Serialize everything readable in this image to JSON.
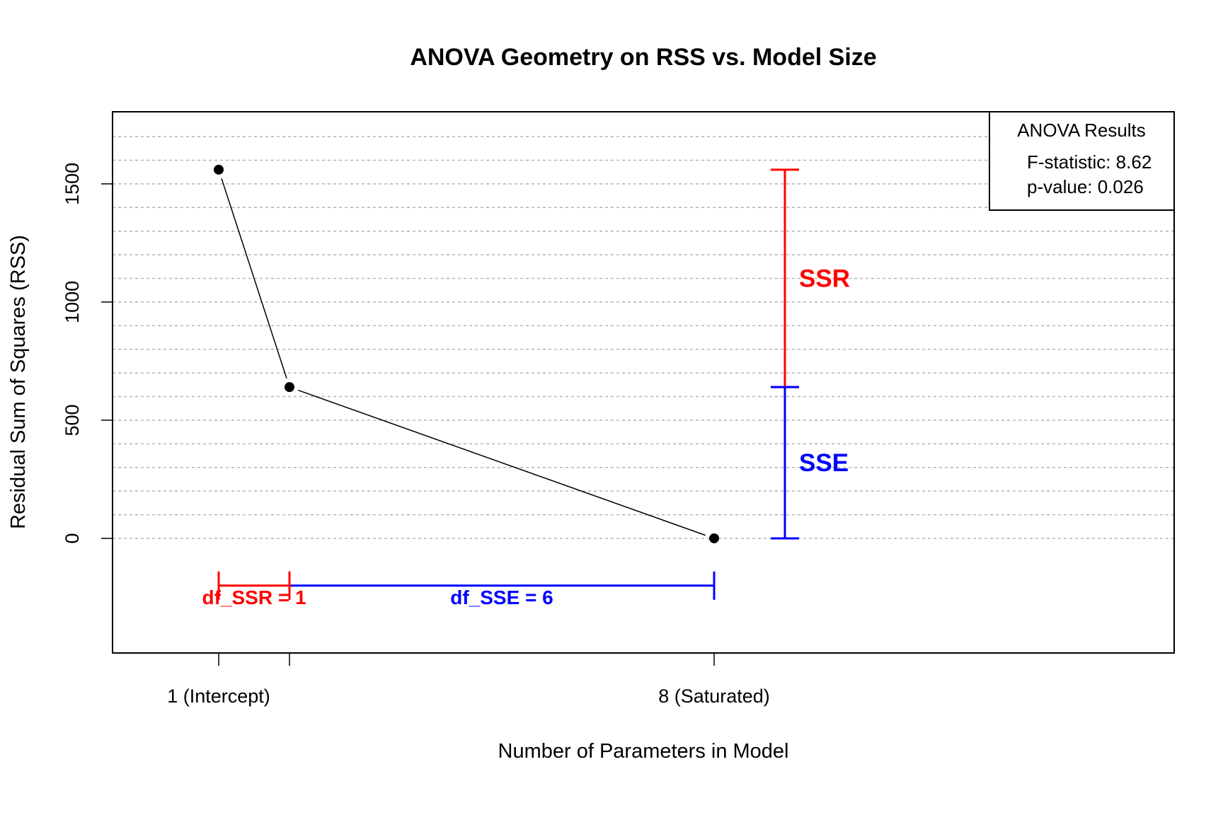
{
  "chart_data": {
    "type": "line",
    "title": "ANOVA Geometry on RSS vs. Model Size",
    "xlabel": "Number of Parameters in Model",
    "ylabel": "Residual Sum of Squares (RSS)",
    "xlim": [
      -0.5,
      14.5
    ],
    "ylim": [
      -485,
      1805
    ],
    "x_ticks": [
      {
        "value": 1,
        "label": "1 (Intercept)"
      },
      {
        "value": 2,
        "label": ""
      },
      {
        "value": 8,
        "label": "8 (Saturated)"
      }
    ],
    "y_ticks": [
      0,
      500,
      1000,
      1500
    ],
    "gridlines_y": [
      0,
      100,
      200,
      300,
      400,
      500,
      600,
      700,
      800,
      900,
      1000,
      1100,
      1200,
      1300,
      1400,
      1500,
      1600,
      1700
    ],
    "grid": true,
    "series": [
      {
        "x": [
          1,
          2,
          8
        ],
        "y": [
          1560,
          640,
          0
        ],
        "color": "#000000"
      }
    ],
    "ssr_bracket": {
      "x": 9,
      "y_from": 640,
      "y_to": 1560,
      "label": "SSR",
      "color": "#ff0000"
    },
    "sse_bracket": {
      "x": 9,
      "y_from": 0,
      "y_to": 640,
      "label": "SSE",
      "color": "#0000ff"
    },
    "df_ssr_bracket": {
      "x_from": 1,
      "x_to": 2,
      "y": -200,
      "label": "df_SSR = 1",
      "color": "#ff0000"
    },
    "df_sse_bracket": {
      "x_from": 2,
      "x_to": 8,
      "y": -200,
      "label": "df_SSE = 6",
      "color": "#0000ff"
    },
    "legend": {
      "placement": "top-right",
      "title": "ANOVA Results",
      "lines": [
        "F-statistic: 8.62",
        "p-value: 0.026"
      ]
    }
  }
}
